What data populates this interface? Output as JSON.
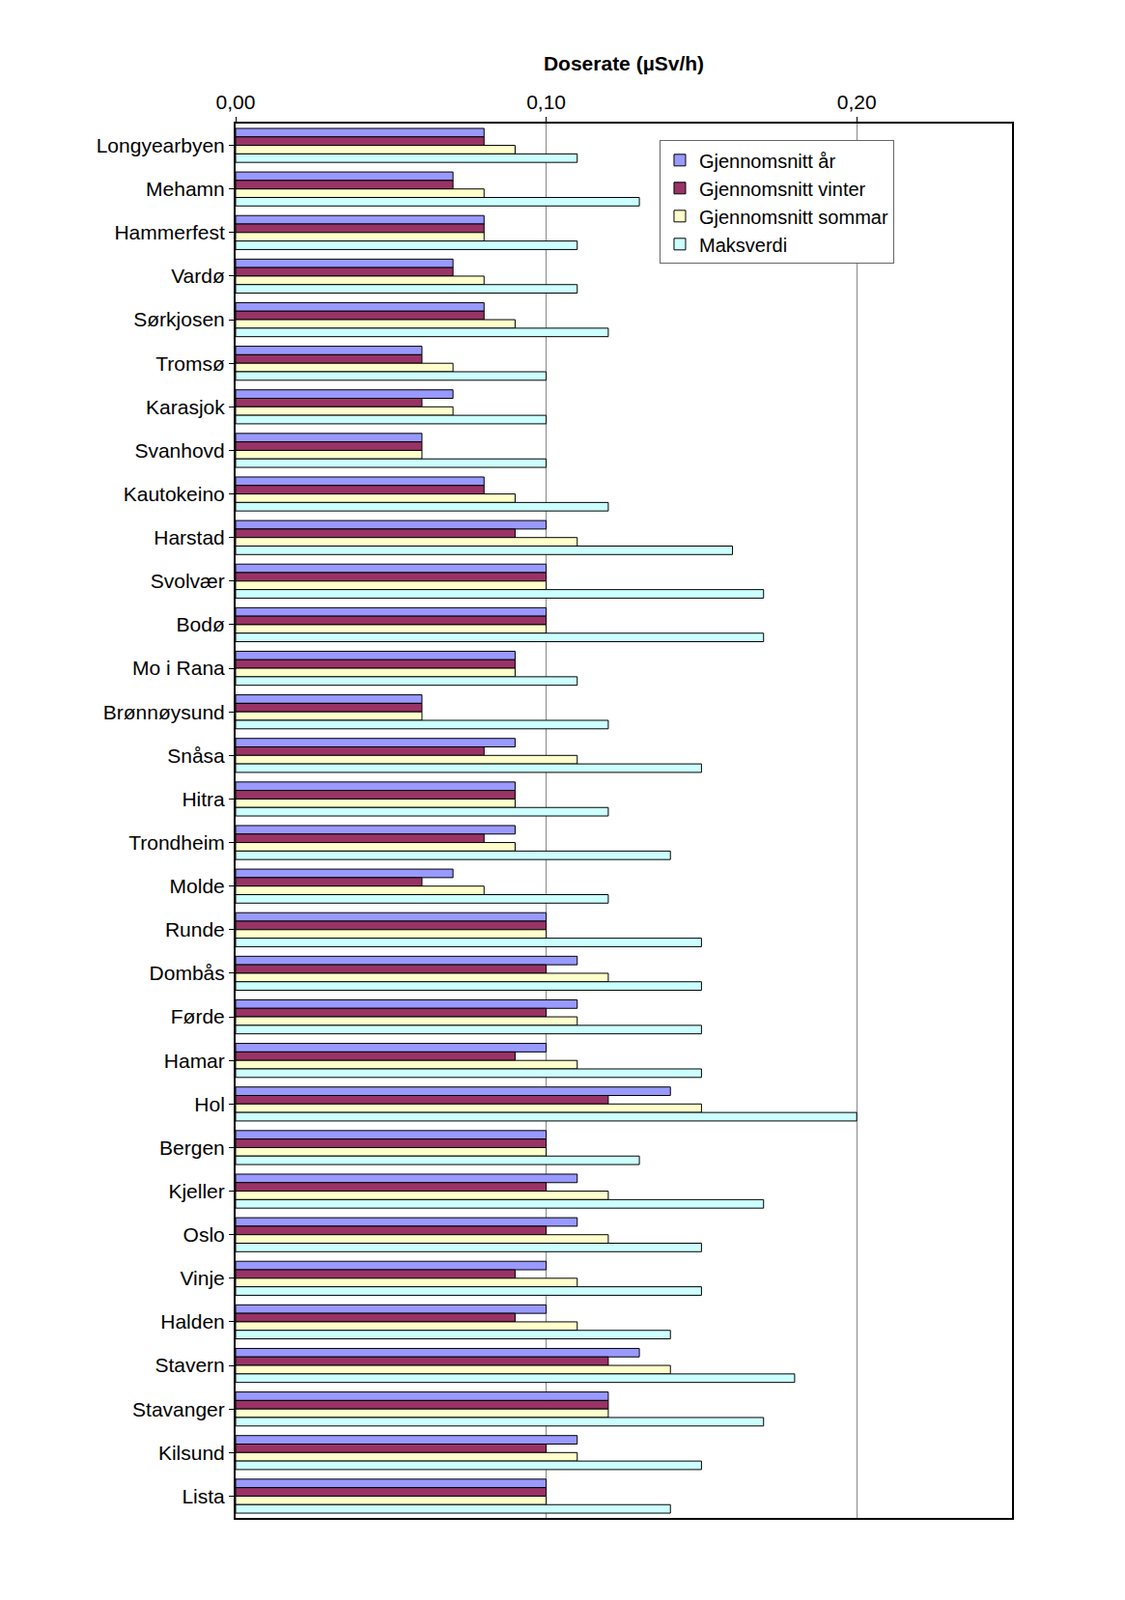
{
  "chart_data": {
    "type": "bar",
    "orientation": "horizontal",
    "x_label": "Doserate (µSv/h)",
    "categories": [
      "Longyearbyen",
      "Mehamn",
      "Hammerfest",
      "Vardø",
      "Sørkjosen",
      "Tromsø",
      "Karasjok",
      "Svanhovd",
      "Kautokeino",
      "Harstad",
      "Svolvær",
      "Bodø",
      "Mo i Rana",
      "Brønnøysund",
      "Snåsa",
      "Hitra",
      "Trondheim",
      "Molde",
      "Runde",
      "Dombås",
      "Førde",
      "Hamar",
      "Hol",
      "Bergen",
      "Kjeller",
      "Oslo",
      "Vinje",
      "Halden",
      "Stavern",
      "Stavanger",
      "Kilsund",
      "Lista"
    ],
    "series": [
      {
        "name": "Gjennomsnitt år",
        "color": "#9999ff",
        "values": [
          0.08,
          0.07,
          0.08,
          0.07,
          0.08,
          0.06,
          0.07,
          0.06,
          0.08,
          0.1,
          0.1,
          0.1,
          0.09,
          0.06,
          0.09,
          0.09,
          0.09,
          0.07,
          0.1,
          0.11,
          0.11,
          0.1,
          0.14,
          0.1,
          0.11,
          0.11,
          0.1,
          0.1,
          0.13,
          0.12,
          0.11,
          0.1
        ]
      },
      {
        "name": "Gjennomsnitt vinter",
        "color": "#993366",
        "values": [
          0.08,
          0.07,
          0.08,
          0.07,
          0.08,
          0.06,
          0.06,
          0.06,
          0.08,
          0.09,
          0.1,
          0.1,
          0.09,
          0.06,
          0.08,
          0.09,
          0.08,
          0.06,
          0.1,
          0.1,
          0.1,
          0.09,
          0.12,
          0.1,
          0.1,
          0.1,
          0.09,
          0.09,
          0.12,
          0.12,
          0.1,
          0.1
        ]
      },
      {
        "name": "Gjennomsnitt sommar",
        "color": "#ffffcc",
        "values": [
          0.09,
          0.08,
          0.08,
          0.08,
          0.09,
          0.07,
          0.07,
          0.06,
          0.09,
          0.11,
          0.1,
          0.1,
          0.09,
          0.06,
          0.11,
          0.09,
          0.09,
          0.08,
          0.1,
          0.12,
          0.11,
          0.11,
          0.15,
          0.1,
          0.12,
          0.12,
          0.11,
          0.11,
          0.14,
          0.12,
          0.11,
          0.1
        ]
      },
      {
        "name": "Maksverdi",
        "color": "#ccffff",
        "values": [
          0.11,
          0.13,
          0.11,
          0.11,
          0.12,
          0.1,
          0.1,
          0.1,
          0.12,
          0.16,
          0.17,
          0.17,
          0.11,
          0.12,
          0.15,
          0.12,
          0.14,
          0.12,
          0.15,
          0.15,
          0.15,
          0.15,
          0.2,
          0.13,
          0.17,
          0.15,
          0.15,
          0.14,
          0.18,
          0.17,
          0.15,
          0.14
        ]
      }
    ],
    "xlim": [
      0,
      0.25
    ],
    "xticks": [
      {
        "value": 0,
        "label": "0,00"
      },
      {
        "value": 0.1,
        "label": "0,10"
      },
      {
        "value": 0.2,
        "label": "0,20"
      }
    ],
    "grid": true,
    "legend": "upper right"
  }
}
